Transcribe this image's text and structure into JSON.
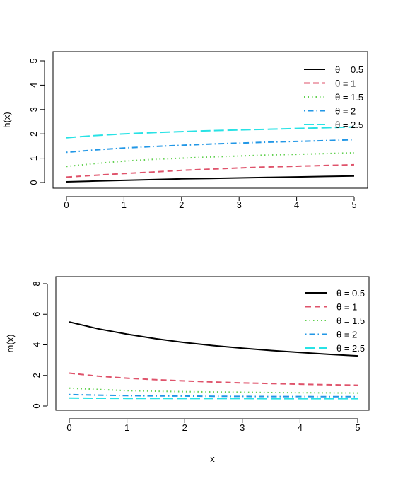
{
  "chart_data": [
    {
      "type": "line",
      "title": "",
      "xlabel": "",
      "ylabel": "h(x)",
      "xlim": [
        0,
        5
      ],
      "ylim": [
        0,
        5
      ],
      "xticks": [
        "0",
        "1",
        "2",
        "3",
        "4",
        "5"
      ],
      "yticks": [
        "0",
        "1",
        "2",
        "3",
        "4",
        "5"
      ],
      "grid": false,
      "legend_position": "top-right",
      "x": [
        0,
        0.5,
        1,
        1.5,
        2,
        2.5,
        3,
        3.5,
        4,
        4.5,
        5
      ],
      "series": [
        {
          "name": "θ = 0.5",
          "color": "#000000",
          "dash": "solid",
          "values": [
            0.03,
            0.06,
            0.09,
            0.12,
            0.15,
            0.17,
            0.19,
            0.21,
            0.23,
            0.25,
            0.27
          ]
        },
        {
          "name": "θ = 1",
          "color": "#DF536B",
          "dash": "dashed",
          "values": [
            0.22,
            0.3,
            0.37,
            0.43,
            0.5,
            0.55,
            0.6,
            0.64,
            0.67,
            0.7,
            0.73
          ]
        },
        {
          "name": "θ = 1.5",
          "color": "#61D04F",
          "dash": "dotted",
          "values": [
            0.66,
            0.78,
            0.88,
            0.95,
            1.0,
            1.05,
            1.09,
            1.13,
            1.16,
            1.19,
            1.22
          ]
        },
        {
          "name": "θ = 2",
          "color": "#2297E6",
          "dash": "dotdash",
          "values": [
            1.24,
            1.34,
            1.42,
            1.48,
            1.53,
            1.58,
            1.62,
            1.66,
            1.69,
            1.72,
            1.76
          ]
        },
        {
          "name": "θ = 2.5",
          "color": "#28E2E5",
          "dash": "longdash",
          "values": [
            1.84,
            1.93,
            2.0,
            2.05,
            2.09,
            2.13,
            2.16,
            2.19,
            2.22,
            2.25,
            2.28
          ]
        }
      ]
    },
    {
      "type": "line",
      "title": "",
      "xlabel": "x",
      "ylabel": "m(x)",
      "xlim": [
        0,
        5
      ],
      "ylim": [
        0,
        8
      ],
      "xticks": [
        "0",
        "1",
        "2",
        "3",
        "4",
        "5"
      ],
      "yticks": [
        "0",
        "2",
        "4",
        "6",
        "8"
      ],
      "grid": false,
      "legend_position": "top-right",
      "x": [
        0,
        0.5,
        1,
        1.5,
        2,
        2.5,
        3,
        3.5,
        4,
        4.5,
        5
      ],
      "series": [
        {
          "name": "θ = 0.5",
          "color": "#000000",
          "dash": "solid",
          "values": [
            5.5,
            5.05,
            4.7,
            4.4,
            4.15,
            3.95,
            3.78,
            3.63,
            3.5,
            3.38,
            3.28
          ]
        },
        {
          "name": "θ = 1",
          "color": "#DF536B",
          "dash": "dashed",
          "values": [
            2.15,
            1.95,
            1.82,
            1.72,
            1.64,
            1.57,
            1.51,
            1.47,
            1.43,
            1.39,
            1.36
          ]
        },
        {
          "name": "θ = 1.5",
          "color": "#61D04F",
          "dash": "dotted",
          "values": [
            1.17,
            1.08,
            1.01,
            0.97,
            0.94,
            0.92,
            0.9,
            0.88,
            0.87,
            0.86,
            0.85
          ]
        },
        {
          "name": "θ = 2",
          "color": "#2297E6",
          "dash": "dotdash",
          "values": [
            0.75,
            0.71,
            0.68,
            0.66,
            0.65,
            0.64,
            0.63,
            0.62,
            0.62,
            0.61,
            0.61
          ]
        },
        {
          "name": "θ = 2.5",
          "color": "#28E2E5",
          "dash": "longdash",
          "values": [
            0.52,
            0.51,
            0.5,
            0.5,
            0.49,
            0.49,
            0.49,
            0.48,
            0.48,
            0.48,
            0.48
          ]
        }
      ]
    }
  ]
}
